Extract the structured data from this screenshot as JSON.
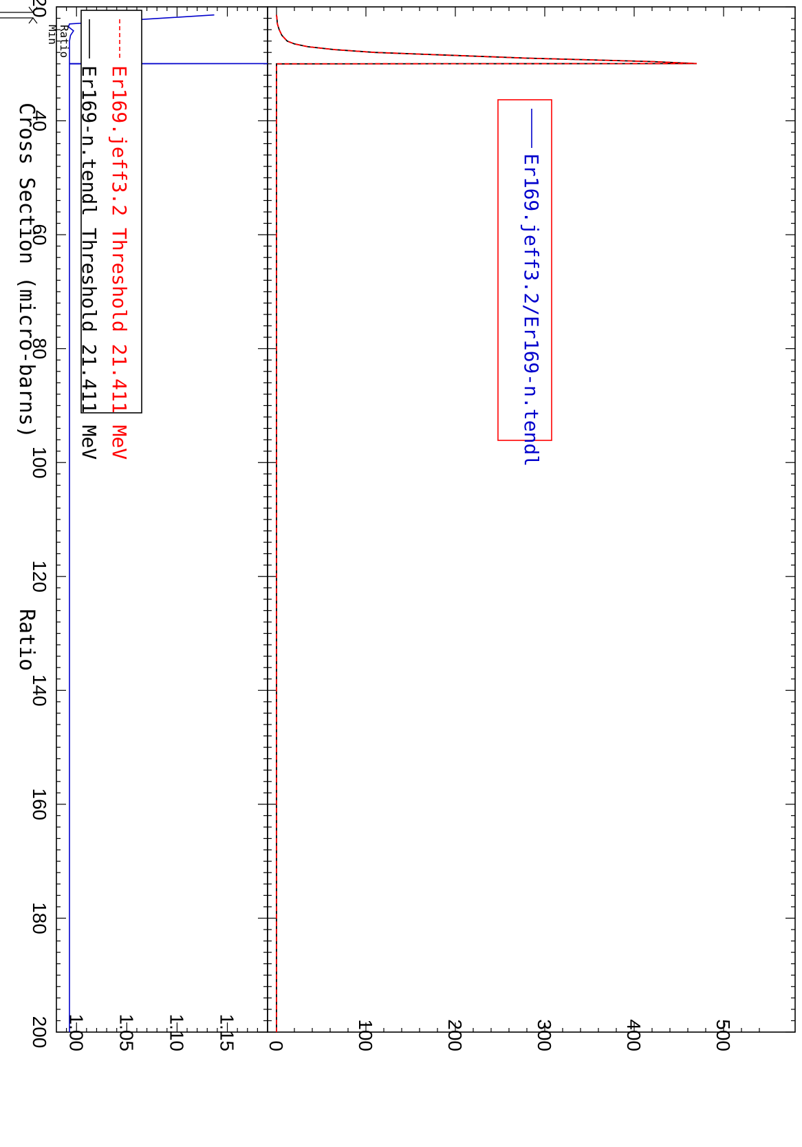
{
  "chart_data": [
    {
      "type": "line",
      "panel": "cross-section",
      "ylabel": "Cross Section (micro-barns)",
      "xlim": [
        20,
        200
      ],
      "ylim": [
        -10,
        580
      ],
      "yticks": [
        0,
        100,
        200,
        300,
        400,
        500
      ],
      "xticks": [
        20,
        40,
        60,
        80,
        100,
        120,
        140,
        160,
        180,
        200
      ],
      "grid": false,
      "legend_position": "top-left",
      "series": [
        {
          "name": "Er169-n.tendl Threshold 21.411 MeV",
          "color": "#000000",
          "style": "solid",
          "x": [
            21.411,
            22,
            23,
            24,
            25,
            26,
            26.5,
            27,
            27.5,
            28,
            29,
            29.6,
            29.95,
            30,
            31,
            200
          ],
          "y": [
            0,
            0.5,
            1,
            3,
            6,
            12,
            20,
            35,
            65,
            110,
            280,
            420,
            470,
            0,
            0,
            0
          ]
        },
        {
          "name": "Er169.jeff3.2 Threshold 21.411 MeV",
          "color": "#ff0000",
          "style": "dashed",
          "x": [
            21.411,
            22,
            23,
            24,
            25,
            26,
            26.5,
            27,
            27.5,
            28,
            29,
            29.6,
            29.95,
            30,
            31,
            200
          ],
          "y": [
            0,
            0.5,
            1,
            3,
            6,
            12,
            20,
            35,
            65,
            110,
            280,
            420,
            470,
            0,
            0,
            0
          ]
        }
      ],
      "annotation": {
        "line1": "Min",
        "line2": "Ratio"
      }
    },
    {
      "type": "line",
      "panel": "ratio",
      "ylabel": "Ratio",
      "xlim": [
        20,
        200
      ],
      "ylim": [
        0.98,
        1.19
      ],
      "yticks": [
        "1.00",
        "1.05",
        "1.10",
        "1.15"
      ],
      "xticks": [
        20,
        40,
        60,
        80,
        100,
        120,
        140,
        160,
        180,
        200
      ],
      "legend_position": "top-left",
      "series": [
        {
          "name": "Er169.jeff3.2/Er169-n.tendl",
          "color": "#0000cc",
          "style": "solid",
          "x": [
            21.411,
            23,
            23.5,
            24.2,
            25,
            26,
            26.5,
            29.95,
            29.95,
            30,
            200
          ],
          "y": [
            1.137,
            0.993,
            0.992,
            0.997,
            0.994,
            0.993,
            0.993,
            0.993,
            1.19,
            0.993,
            0.993
          ]
        }
      ]
    }
  ]
}
